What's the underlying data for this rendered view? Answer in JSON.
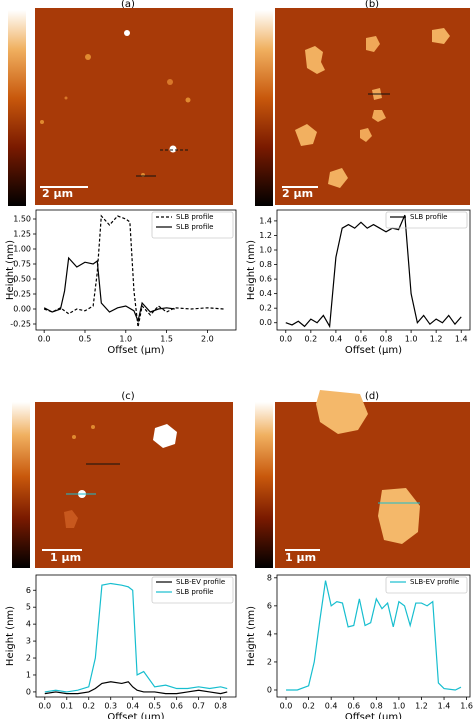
{
  "panels": [
    {
      "label": "(a)",
      "scale_bar": "2 µm"
    },
    {
      "label": "(b)",
      "scale_bar": "2 µm"
    },
    {
      "label": "(c)",
      "scale_bar": "1 µm"
    },
    {
      "label": "(d)",
      "scale_bar": "1 µm"
    }
  ],
  "chart_data": [
    {
      "type": "line",
      "x_label": "Offset (µm)",
      "y_label": "Height (nm)",
      "legend": "upper right",
      "xlim": [
        -0.1,
        2.35
      ],
      "ylim": [
        -0.35,
        1.65
      ],
      "xticks": [
        {
          "value": 0,
          "label": "0.0"
        },
        0.5,
        {
          "value": 1,
          "label": "1.0"
        },
        1.5,
        {
          "value": 2,
          "label": "2.0"
        }
      ],
      "yticks": [
        -0.25,
        {
          "value": 0,
          "label": "0.00"
        },
        0.25,
        {
          "value": 0.5,
          "label": "0.50"
        },
        0.75,
        {
          "value": 1,
          "label": "1.00"
        },
        1.25,
        {
          "value": 1.5,
          "label": "1.50"
        }
      ],
      "series": [
        {
          "name": "SLB profile",
          "color": "#000000",
          "dash": true,
          "x": [
            0,
            0.1,
            0.2,
            0.3,
            0.4,
            0.5,
            0.6,
            0.65,
            0.7,
            0.8,
            0.9,
            1.0,
            1.05,
            1.1,
            1.15,
            1.2,
            1.3,
            1.4,
            1.5,
            1.6,
            1.8,
            2.0,
            2.2
          ],
          "values": [
            0,
            -0.05,
            0.02,
            -0.08,
            0.0,
            -0.03,
            0.05,
            0.6,
            1.55,
            1.4,
            1.55,
            1.5,
            1.45,
            0.3,
            -0.3,
            0.05,
            -0.1,
            0.05,
            -0.05,
            0.02,
            0,
            0.02,
            0
          ]
        },
        {
          "name": "SLB profile",
          "color": "#000000",
          "dash": false,
          "x": [
            0,
            0.1,
            0.2,
            0.25,
            0.3,
            0.4,
            0.5,
            0.6,
            0.65,
            0.7,
            0.8,
            0.9,
            1.0,
            1.1,
            1.15,
            1.2,
            1.3,
            1.4,
            1.5,
            1.6
          ],
          "values": [
            0.02,
            -0.05,
            0.0,
            0.3,
            0.85,
            0.7,
            0.78,
            0.75,
            0.8,
            0.1,
            -0.05,
            0.02,
            0.05,
            -0.03,
            -0.2,
            0.1,
            -0.05,
            0.0,
            0.02,
            0.0
          ]
        }
      ]
    },
    {
      "type": "line",
      "x_label": "Offset (µm)",
      "y_label": "Height (nm)",
      "legend": "upper right",
      "xlim": [
        -0.07,
        1.47
      ],
      "ylim": [
        -0.1,
        1.55
      ],
      "xticks": [
        {
          "value": 0,
          "label": "0.0"
        },
        0.2,
        0.4,
        0.6,
        0.8,
        {
          "value": 1,
          "label": "1.0"
        },
        1.2,
        1.4
      ],
      "yticks": [
        {
          "value": 0,
          "label": "0.0"
        },
        0.2,
        0.4,
        0.6,
        0.8,
        {
          "value": 1,
          "label": "1.0"
        },
        1.2,
        1.4
      ],
      "series": [
        {
          "name": "SLB profile",
          "color": "#000000",
          "dash": false,
          "x": [
            0,
            0.05,
            0.1,
            0.15,
            0.2,
            0.25,
            0.3,
            0.35,
            0.4,
            0.45,
            0.5,
            0.55,
            0.6,
            0.65,
            0.7,
            0.75,
            0.8,
            0.85,
            0.9,
            0.95,
            1.0,
            1.05,
            1.1,
            1.15,
            1.2,
            1.25,
            1.3,
            1.35,
            1.4
          ],
          "values": [
            0.0,
            -0.03,
            0.02,
            -0.05,
            0.05,
            0.0,
            0.1,
            -0.05,
            0.9,
            1.3,
            1.35,
            1.3,
            1.38,
            1.3,
            1.35,
            1.3,
            1.25,
            1.3,
            1.28,
            1.48,
            0.4,
            0.0,
            0.1,
            -0.02,
            0.05,
            0.0,
            0.1,
            -0.02,
            0.08
          ]
        }
      ]
    },
    {
      "type": "line",
      "x_label": "Offset (µm)",
      "y_label": "Height (nm)",
      "legend": "upper right",
      "xlim": [
        -0.04,
        0.87
      ],
      "ylim": [
        -0.3,
        6.9
      ],
      "xticks": [
        {
          "value": 0,
          "label": "0.0"
        },
        0.1,
        0.2,
        0.3,
        0.4,
        0.5,
        0.6,
        0.7,
        0.8
      ],
      "yticks": [
        0,
        1,
        2,
        3,
        4,
        5,
        6
      ],
      "series": [
        {
          "name": "SLB-EV profile",
          "color": "#000000",
          "dash": false,
          "x": [
            0,
            0.05,
            0.1,
            0.15,
            0.2,
            0.23,
            0.26,
            0.3,
            0.35,
            0.38,
            0.4,
            0.42,
            0.45,
            0.5,
            0.55,
            0.6,
            0.65,
            0.7,
            0.75,
            0.8,
            0.83
          ],
          "values": [
            -0.1,
            0,
            -0.1,
            -0.1,
            0,
            0.2,
            0.5,
            0.6,
            0.5,
            0.6,
            0.3,
            0.1,
            0,
            0,
            -0.1,
            -0.1,
            0,
            0.1,
            0,
            -0.1,
            0
          ]
        },
        {
          "name": "SLB profile",
          "color": "#17becf",
          "dash": false,
          "x": [
            0,
            0.05,
            0.1,
            0.15,
            0.2,
            0.23,
            0.26,
            0.3,
            0.35,
            0.38,
            0.4,
            0.42,
            0.45,
            0.5,
            0.55,
            0.6,
            0.65,
            0.7,
            0.75,
            0.8,
            0.83
          ],
          "values": [
            0,
            0.1,
            0,
            0.1,
            0.3,
            2,
            6.3,
            6.4,
            6.3,
            6.2,
            6,
            1,
            1.2,
            0.3,
            0.4,
            0.2,
            0.2,
            0.3,
            0.2,
            0.3,
            0.2
          ]
        }
      ]
    },
    {
      "type": "line",
      "x_label": "Offset (µm)",
      "y_label": "Height (nm)",
      "legend": "upper right",
      "xlim": [
        -0.08,
        1.63
      ],
      "ylim": [
        -0.5,
        8.2
      ],
      "xticks": [
        {
          "value": 0,
          "label": "0.0"
        },
        0.2,
        0.4,
        0.6,
        0.8,
        {
          "value": 1,
          "label": "1.0"
        },
        1.2,
        1.4,
        1.6
      ],
      "yticks": [
        0,
        2,
        4,
        6,
        8
      ],
      "series": [
        {
          "name": "SLB-EV profile",
          "color": "#17becf",
          "dash": false,
          "x": [
            0,
            0.1,
            0.2,
            0.25,
            0.3,
            0.35,
            0.4,
            0.45,
            0.5,
            0.55,
            0.6,
            0.65,
            0.7,
            0.75,
            0.8,
            0.85,
            0.9,
            0.95,
            1.0,
            1.05,
            1.1,
            1.15,
            1.2,
            1.25,
            1.3,
            1.35,
            1.4,
            1.5,
            1.55
          ],
          "values": [
            0,
            0,
            0.3,
            2,
            5,
            7.8,
            6,
            6.3,
            6.2,
            4.5,
            4.6,
            6.5,
            4.6,
            4.8,
            6.5,
            5.8,
            6.2,
            4.5,
            6.3,
            6,
            4.6,
            6.2,
            6.2,
            6,
            6.3,
            0.5,
            0.1,
            0,
            0.2
          ]
        }
      ]
    }
  ]
}
